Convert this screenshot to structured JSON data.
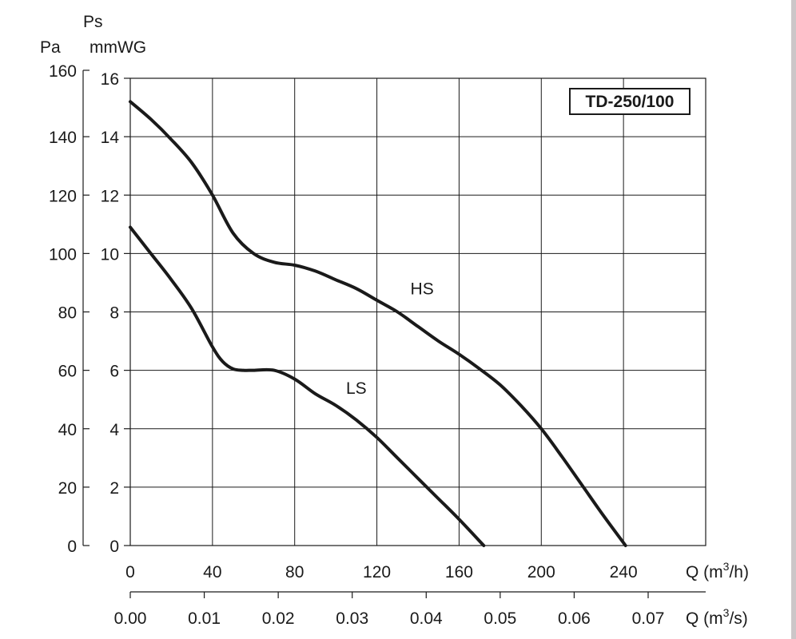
{
  "chart_data": {
    "type": "line",
    "model_label": "TD-250/100",
    "y_left": {
      "label": "Pa",
      "ticks": [
        "0",
        "20",
        "40",
        "60",
        "80",
        "100",
        "120",
        "140",
        "160"
      ],
      "range": [
        0,
        160
      ]
    },
    "y_right": {
      "label_top": "Ps",
      "label_unit": "mmWG",
      "ticks": [
        "0",
        "2",
        "4",
        "6",
        "8",
        "10",
        "12",
        "14",
        "16"
      ],
      "range": [
        0,
        16
      ]
    },
    "x_primary": {
      "label": "Q (m3/h)",
      "ticks": [
        "0",
        "40",
        "80",
        "120",
        "160",
        "200",
        "240"
      ],
      "range": [
        0,
        280
      ]
    },
    "x_secondary": {
      "label": "Q (m3/s)",
      "ticks": [
        "0.00",
        "0.01",
        "0.02",
        "0.03",
        "0.04",
        "0.05",
        "0.06",
        "0.07"
      ]
    },
    "grid": true,
    "series": [
      {
        "name": "HS",
        "x": [
          0,
          10,
          20,
          30,
          40,
          50,
          60,
          70,
          80,
          90,
          100,
          110,
          120,
          130,
          140,
          150,
          160,
          170,
          180,
          190,
          200,
          210,
          220,
          230,
          241
        ],
        "y": [
          15.2,
          14.6,
          13.9,
          13.1,
          12.0,
          10.7,
          10.0,
          9.7,
          9.6,
          9.4,
          9.1,
          8.8,
          8.4,
          8.0,
          7.5,
          7.0,
          6.55,
          6.05,
          5.5,
          4.8,
          4.0,
          3.05,
          2.05,
          1.05,
          0.0
        ]
      },
      {
        "name": "LS",
        "x": [
          0,
          10,
          20,
          30,
          40,
          45,
          50,
          55,
          60,
          70,
          80,
          90,
          100,
          110,
          120,
          130,
          140,
          150,
          160,
          172
        ],
        "y": [
          10.9,
          10.0,
          9.1,
          8.1,
          6.8,
          6.3,
          6.05,
          6.0,
          6.0,
          6.0,
          5.7,
          5.2,
          4.8,
          4.3,
          3.7,
          3.0,
          2.3,
          1.6,
          0.9,
          0.0
        ]
      }
    ],
    "series_label_positions": [
      {
        "name": "HS",
        "x": 142,
        "y": 8.6
      },
      {
        "name": "LS",
        "x": 110,
        "y": 5.2
      }
    ]
  }
}
